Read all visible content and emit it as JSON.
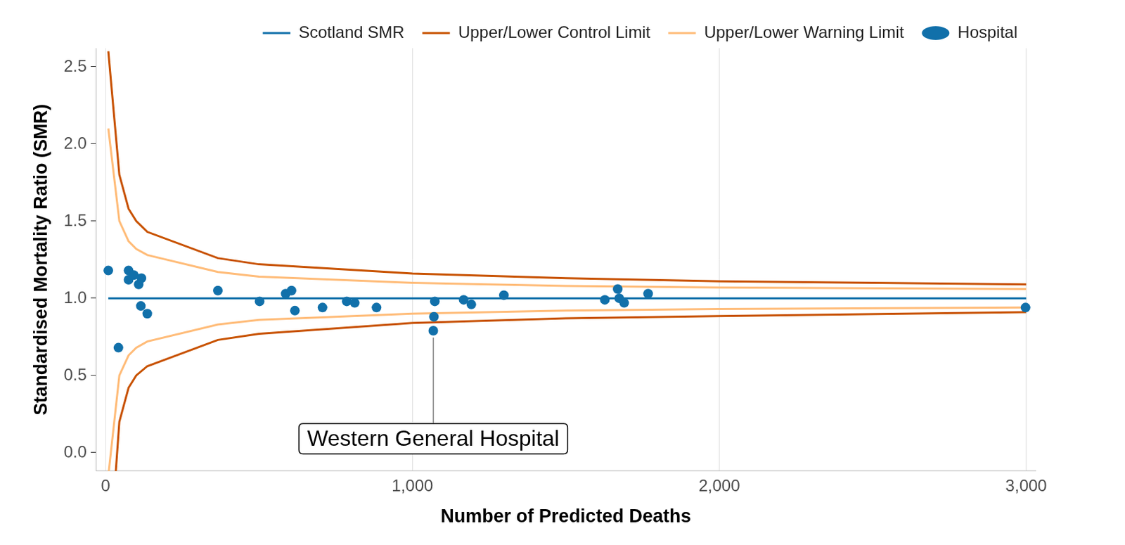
{
  "chart_data": {
    "type": "scatter",
    "x_label": "Number of Predicted Deaths",
    "y_label": "Standardised Mortality Ratio (SMR)",
    "xlim": [
      -30,
      3030
    ],
    "ylim": [
      -0.12,
      2.62
    ],
    "xticks": [
      0,
      {
        "value": 1000,
        "label": "1,000"
      },
      {
        "value": 2000,
        "label": "2,000"
      },
      {
        "value": 3000,
        "label": "3,000"
      }
    ],
    "yticks": [
      {
        "value": 0,
        "label": "0.0"
      },
      {
        "value": 0.5,
        "label": "0.5"
      },
      {
        "value": 1,
        "label": "1.0"
      },
      {
        "value": 1.5,
        "label": "1.5"
      },
      {
        "value": 2,
        "label": "2.0"
      },
      {
        "value": 2.5,
        "label": "2.5"
      }
    ],
    "grid": "x",
    "legend": "top",
    "series": [
      {
        "name": "Scotland SMR",
        "type": "line",
        "line_style": "solid",
        "color": "#1170aa",
        "x": [
          9,
          3000
        ],
        "values": [
          1,
          1
        ]
      },
      {
        "name": "Upper/Lower Control Limit",
        "type": "line",
        "line_style": "solid",
        "color": "#c85200",
        "x": [
          9,
          45,
          75,
          100,
          136,
          366,
          500,
          1000,
          1500,
          2000,
          3000
        ],
        "upper": [
          2.6,
          1.8,
          1.58,
          1.5,
          1.43,
          1.26,
          1.22,
          1.16,
          1.13,
          1.11,
          1.09
        ],
        "lower": [
          -0.8,
          0.2,
          0.42,
          0.5,
          0.56,
          0.73,
          0.77,
          0.84,
          0.87,
          0.885,
          0.91
        ]
      },
      {
        "name": "Upper/Lower Warning Limit",
        "type": "line",
        "line_style": "solid",
        "color": "#ffbc79",
        "x": [
          9,
          45,
          75,
          100,
          136,
          366,
          500,
          1000,
          1500,
          2000,
          3000
        ],
        "upper": [
          2.1,
          1.5,
          1.37,
          1.32,
          1.28,
          1.17,
          1.14,
          1.1,
          1.08,
          1.07,
          1.06
        ],
        "lower": [
          -0.15,
          0.5,
          0.63,
          0.68,
          0.72,
          0.83,
          0.86,
          0.9,
          0.92,
          0.93,
          0.94
        ]
      },
      {
        "name": "Hospital",
        "type": "scatter",
        "marker": "circle",
        "color": "#1170aa",
        "x": [
          9,
          42,
          75,
          75,
          92,
          108,
          117,
          115,
          136,
          366,
          502,
          587,
          606,
          617,
          707,
          786,
          812,
          883,
          1073,
          1070,
          1068,
          1167,
          1192,
          1298,
          1627,
          1669,
          1674,
          1690,
          1768,
          2998
        ],
        "values": [
          1.18,
          0.68,
          1.18,
          1.12,
          1.15,
          1.09,
          1.13,
          0.95,
          0.9,
          1.05,
          0.98,
          1.03,
          1.05,
          0.92,
          0.94,
          0.98,
          0.97,
          0.94,
          0.98,
          0.88,
          0.79,
          0.99,
          0.96,
          1.02,
          0.99,
          1.06,
          1.0,
          0.97,
          1.03,
          0.94
        ]
      }
    ],
    "annotations": [
      {
        "text": "Western General Hospital",
        "x": 1068,
        "y": 0.79,
        "label_y": 0.09
      }
    ]
  }
}
